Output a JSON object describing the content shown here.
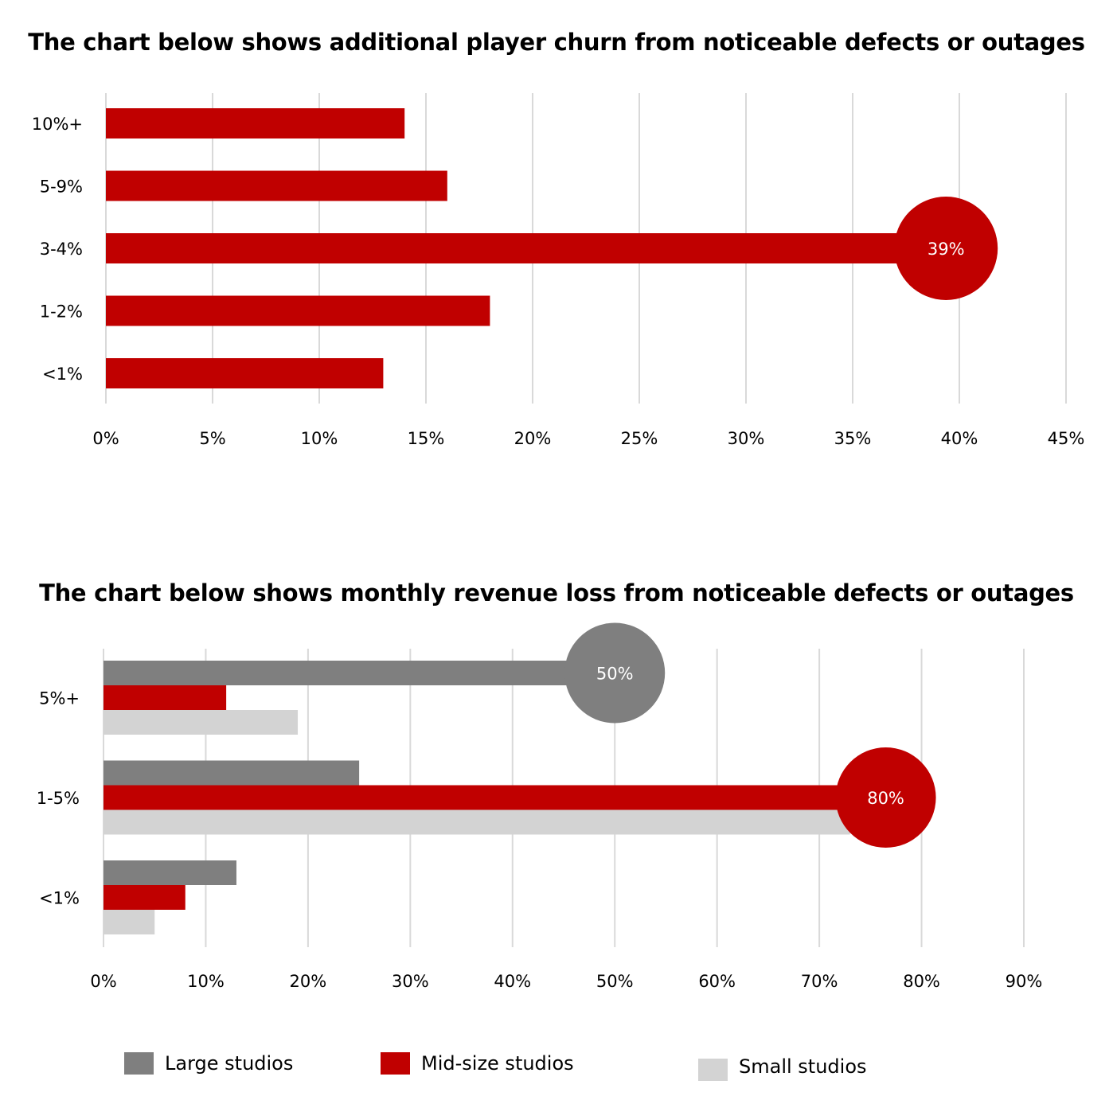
{
  "colors": {
    "mid": "#c00000",
    "large": "#7f7f7f",
    "small": "#d3d3d3",
    "grid": "#d9d9d9",
    "bubble_text": "#ffffff"
  },
  "chart_data": [
    {
      "type": "bar",
      "orientation": "horizontal",
      "title": "The chart below shows additional player churn from noticeable defects or outages",
      "categories": [
        "10%+",
        "5-9%",
        "3-4%",
        "1-2%",
        "<1%"
      ],
      "values": [
        14,
        16,
        39,
        18,
        13
      ],
      "series_color": "mid",
      "xlim": [
        0,
        45
      ],
      "xticks": [
        0,
        5,
        10,
        15,
        20,
        25,
        30,
        35,
        40,
        45
      ],
      "xtick_labels": [
        "0%",
        "5%",
        "10%",
        "15%",
        "20%",
        "25%",
        "30%",
        "35%",
        "40%",
        "45%"
      ],
      "grid": true,
      "highlight": {
        "category": "3-4%",
        "label": "39%"
      }
    },
    {
      "type": "bar",
      "orientation": "horizontal",
      "title": "The chart below shows monthly revenue loss from noticeable defects or outages",
      "categories": [
        "5%+",
        "1-5%",
        "<1%"
      ],
      "series": [
        {
          "name": "Large studios",
          "color": "large",
          "values": [
            50,
            25,
            13
          ]
        },
        {
          "name": "Mid-size studios",
          "color": "mid",
          "values": [
            12,
            80,
            8
          ]
        },
        {
          "name": "Small studios",
          "color": "small",
          "values": [
            19,
            73,
            5
          ]
        }
      ],
      "xlim": [
        0,
        90
      ],
      "xticks": [
        0,
        10,
        20,
        30,
        40,
        50,
        60,
        70,
        80,
        90
      ],
      "xtick_labels": [
        "0%",
        "10%",
        "20%",
        "30%",
        "40%",
        "50%",
        "60%",
        "70%",
        "80%",
        "90%"
      ],
      "grid": true,
      "legend": "bottom",
      "highlights": [
        {
          "category": "5%+",
          "series": "Large studios",
          "label": "50%"
        },
        {
          "category": "1-5%",
          "series": "Mid-size studios",
          "label": "80%"
        }
      ]
    }
  ],
  "legend": [
    {
      "label": "Large studios",
      "color": "large"
    },
    {
      "label": "Mid-size studios",
      "color": "mid"
    },
    {
      "label": "Small studios",
      "color": "small"
    }
  ]
}
